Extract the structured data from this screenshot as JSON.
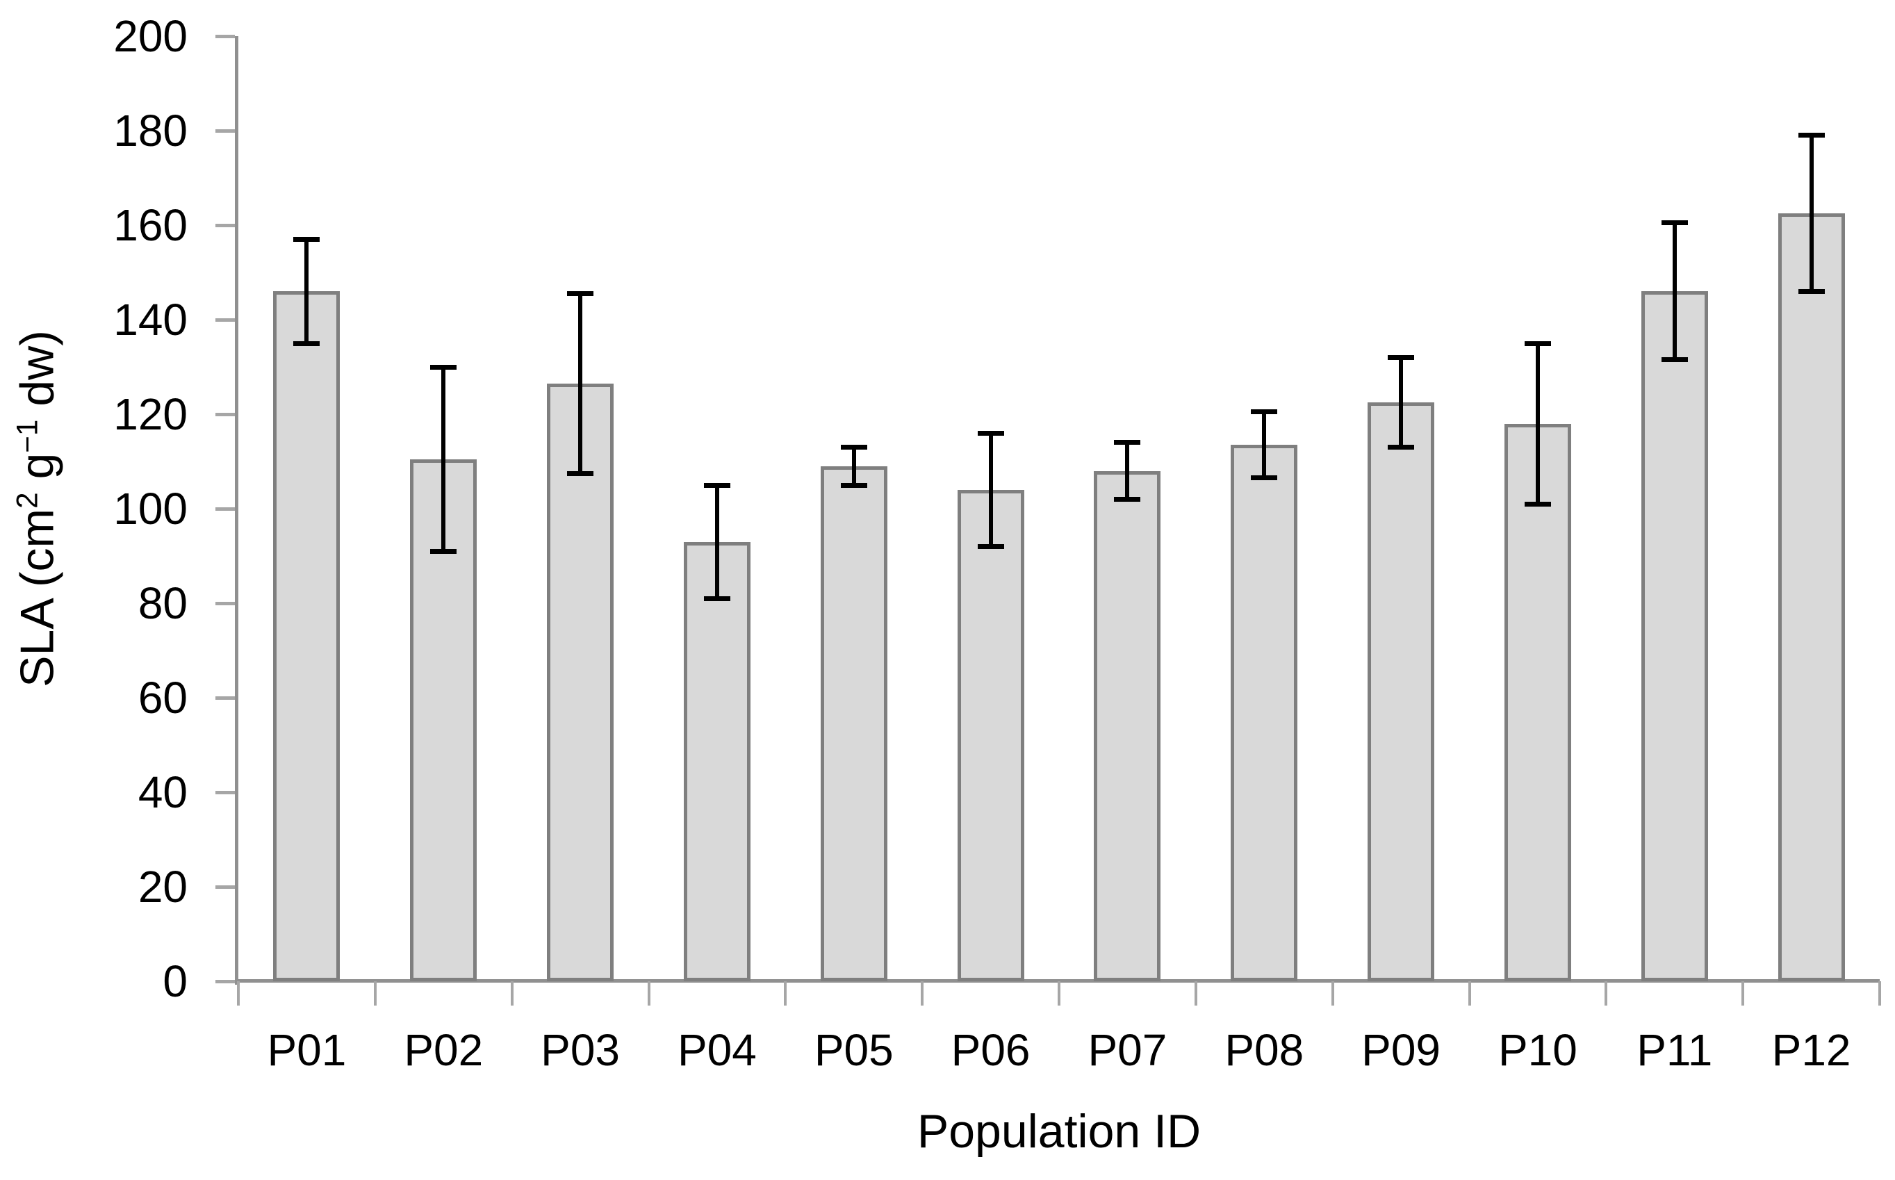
{
  "chart_data": {
    "type": "bar",
    "title": "",
    "xlabel": "Population ID",
    "ylabel": "SLA (cm² g⁻¹ dw)",
    "ylabel_parts": [
      {
        "text": "SLA (cm",
        "sup": false
      },
      {
        "text": "2",
        "sup": true
      },
      {
        "text": " g",
        "sup": false
      },
      {
        "text": "−1",
        "sup": true
      },
      {
        "text": " dw)",
        "sup": false
      }
    ],
    "categories": [
      "P01",
      "P02",
      "P03",
      "P04",
      "P05",
      "P06",
      "P07",
      "P08",
      "P09",
      "P10",
      "P11",
      "P12"
    ],
    "values": [
      146,
      110.5,
      126.5,
      93,
      109,
      104,
      108,
      113.5,
      122.5,
      118,
      146,
      162.5
    ],
    "errors": [
      11,
      19.5,
      19,
      12,
      4,
      12,
      6,
      7,
      9.5,
      17,
      14.5,
      16.5
    ],
    "ylim": [
      0,
      200
    ],
    "ytick_step": 20,
    "yticks": [
      0,
      20,
      40,
      60,
      80,
      100,
      120,
      140,
      160,
      180,
      200
    ],
    "grid": false,
    "legend": "none",
    "error_bar_style": "caps-both-ends",
    "colors": {
      "bar_fill": "#D9D9D9",
      "bar_border": "#7F7F7F",
      "error_bar": "#000000",
      "axis": "#909090",
      "tick": "#A6A6A6",
      "text": "#000000",
      "background": "#ffffff"
    }
  }
}
